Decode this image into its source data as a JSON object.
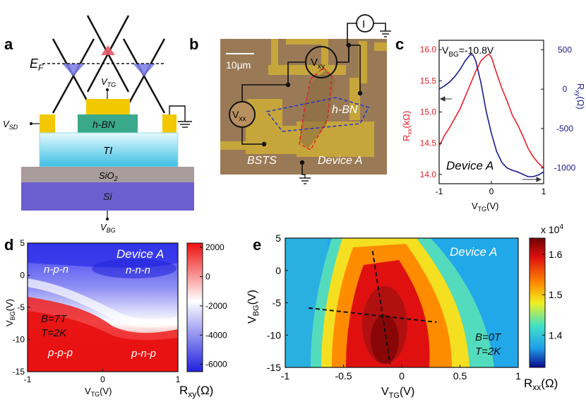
{
  "panel_labels": {
    "a": "a",
    "b": "b",
    "c": "c",
    "d": "d",
    "e": "e"
  },
  "panel_a": {
    "ef": "E",
    "ef_sub": "F",
    "vtg": "V",
    "vtg_sub": "TG",
    "vsd": "V",
    "vsd_sub": "SD",
    "hbn": "h-BN",
    "ti": "TI",
    "sio2": "SiO",
    "sio2_sub": "2",
    "si": "Si",
    "vbg": "V",
    "vbg_sub": "BG",
    "colors": {
      "hbn": "#3aa88a",
      "gold": "#f2c900",
      "ti_top": "#d8f6fc",
      "ti_bottom": "#4fc3e6",
      "sio2": "#a89c9c",
      "si": "#6b5fcf",
      "cone_fill_blue": "#7b7be8",
      "cone_fill_red": "#e85a6a"
    }
  },
  "panel_b": {
    "scale": "10μm",
    "vxy": "V",
    "vxy_sub": "xy",
    "vxx": "V",
    "vxx_sub": "xx",
    "current": "I",
    "hbn": "h-BN",
    "bsts": "BSTS",
    "device": "Device A",
    "colors": {
      "substrate": "#9a7a56",
      "gold": "#c9a83a"
    }
  },
  "chart_data": [
    {
      "id": "c",
      "type": "line",
      "annotation": "V",
      "annotation_sub": "BG",
      "annotation_value": "=-10.8V",
      "label": "Device A",
      "xlabel": "V",
      "xlabel_sub": "TG",
      "xlabel_unit": "(V)",
      "ylabel_left": "R",
      "ylabel_left_sub": "xx",
      "ylabel_left_unit": "(kΩ)",
      "ylabel_right": "R",
      "ylabel_right_sub": "xy",
      "ylabel_right_unit": "(Ω)",
      "xlim": [
        -1,
        1
      ],
      "ylim_left": [
        13.85,
        16.15
      ],
      "ylim_right": [
        -1200,
        620
      ],
      "xticks": [
        "-1",
        "0",
        "1"
      ],
      "yticks_left": [
        "14.0",
        "14.5",
        "15.0",
        "15.5",
        "16.0"
      ],
      "yticks_right": [
        "-1000",
        "-500",
        "0",
        "500"
      ],
      "series": [
        {
          "name": "Rxx",
          "axis": "left",
          "color": "#e8202a",
          "x": [
            -1.0,
            -0.9,
            -0.8,
            -0.7,
            -0.6,
            -0.5,
            -0.4,
            -0.3,
            -0.2,
            -0.1,
            -0.05,
            0.0,
            0.1,
            0.2,
            0.3,
            0.4,
            0.5,
            0.6,
            0.7,
            0.8,
            0.9,
            1.0
          ],
          "y": [
            14.45,
            14.62,
            14.75,
            14.9,
            15.05,
            15.25,
            15.45,
            15.65,
            15.82,
            15.9,
            15.93,
            15.88,
            15.62,
            15.38,
            15.18,
            14.95,
            14.8,
            14.62,
            14.42,
            14.28,
            14.18,
            14.1
          ]
        },
        {
          "name": "Rxy",
          "axis": "right",
          "color": "#1a1a8c",
          "x": [
            -1.0,
            -0.9,
            -0.8,
            -0.7,
            -0.6,
            -0.5,
            -0.4,
            -0.35,
            -0.3,
            -0.2,
            -0.1,
            0.0,
            0.1,
            0.2,
            0.3,
            0.4,
            0.5,
            0.6,
            0.7,
            0.8,
            0.9,
            1.0
          ],
          "y": [
            0,
            40,
            90,
            160,
            250,
            360,
            440,
            430,
            360,
            80,
            -280,
            -560,
            -790,
            -930,
            -1000,
            -1030,
            -1050,
            -1080,
            -1110,
            -1110,
            -1090,
            -1050
          ]
        }
      ]
    },
    {
      "id": "d",
      "type": "heatmap",
      "label": "Device A",
      "regions": [
        "n-p-n",
        "n-n-n",
        "p-p-p",
        "p-n-p"
      ],
      "conditions": [
        "B=7T",
        "T=2K"
      ],
      "xlabel": "V",
      "xlabel_sub": "TG",
      "xlabel_unit": "(V)",
      "ylabel": "V",
      "ylabel_sub": "BG",
      "ylabel_unit": "(V)",
      "colorbar_label": "R",
      "colorbar_sub": "xy",
      "colorbar_unit": "(Ω)",
      "xlim": [
        -1,
        1
      ],
      "ylim": [
        -15,
        5
      ],
      "xticks": [
        "-1",
        "0",
        "1"
      ],
      "yticks": [
        "5",
        "0",
        "-5",
        "-10",
        "-15"
      ],
      "colorbar_range": [
        -6500,
        2300
      ],
      "colorbar_ticks": [
        "2000",
        "0",
        "-2000",
        "-4000",
        "-6000"
      ],
      "colormap": [
        "#2020e0",
        "#ffffff",
        "#ee1010"
      ]
    },
    {
      "id": "e",
      "type": "heatmap",
      "label": "Device A",
      "conditions": [
        "B=0T",
        "T=2K"
      ],
      "xlabel": "V",
      "xlabel_sub": "TG",
      "xlabel_unit": "(V)",
      "ylabel": "V",
      "ylabel_sub": "BG",
      "ylabel_unit": "(V)",
      "colorbar_label": "R",
      "colorbar_sub": "xx",
      "colorbar_unit": "(Ω)",
      "colorbar_scale": "x 10",
      "colorbar_scale_exp": "4",
      "xlim": [
        -1,
        1
      ],
      "ylim": [
        -15,
        5
      ],
      "xticks": [
        "-1",
        "-0.5",
        "0",
        "0.5",
        "1"
      ],
      "yticks": [
        "5",
        "0",
        "-5",
        "-10",
        "-15"
      ],
      "colorbar_range": [
        1.32,
        1.64
      ],
      "colorbar_ticks": [
        "1.6",
        "1.5",
        "1.4"
      ],
      "colormap": [
        "#0a0a8c",
        "#1f9fe8",
        "#40e0c8",
        "#f0f020",
        "#ff8c00",
        "#e01010",
        "#700000"
      ],
      "guide_lines": [
        {
          "x": [
            -0.25,
            -0.1
          ],
          "y": [
            3,
            -14.5
          ]
        },
        {
          "x": [
            -0.8,
            0.3
          ],
          "y": [
            -5.8,
            -8
          ]
        }
      ]
    }
  ]
}
